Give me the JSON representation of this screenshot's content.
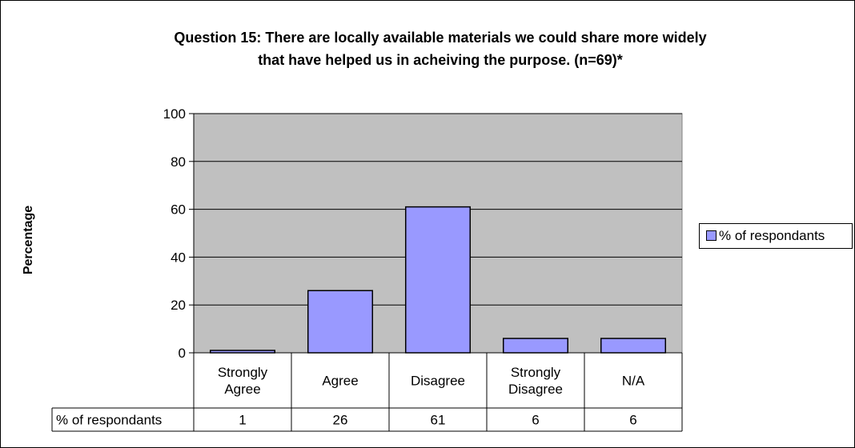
{
  "chart_data": {
    "type": "bar",
    "title_lines": [
      "Question 15: There are locally available materials we could share more widely",
      "that have helped us in acheiving the purpose. (n=69)*"
    ],
    "ylabel": "Percentage",
    "xlabel": "",
    "categories": [
      [
        "Strongly",
        "Agree"
      ],
      [
        "Agree"
      ],
      [
        "Disagree"
      ],
      [
        "Strongly",
        "Disagree"
      ],
      [
        "N/A"
      ]
    ],
    "series": [
      {
        "name": "% of respondants",
        "values": [
          1,
          26,
          61,
          6,
          6
        ],
        "color": "#9999ff"
      }
    ],
    "ylim": [
      0,
      100
    ],
    "yticks": [
      "0",
      "20",
      "40",
      "60",
      "80",
      "100"
    ],
    "grid": true,
    "plot_background": "#c0c0c0",
    "legend_position": "right",
    "data_table": {
      "row_label": "% of respondants",
      "values": [
        "1",
        "26",
        "61",
        "6",
        "6"
      ]
    }
  }
}
